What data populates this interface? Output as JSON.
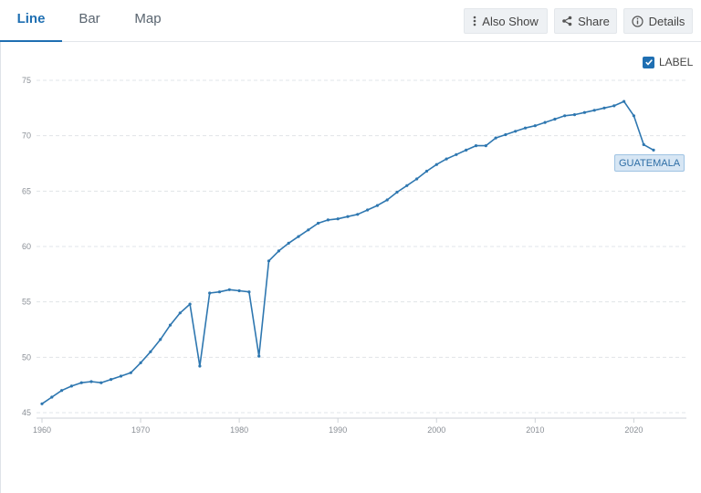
{
  "tabs": [
    {
      "label": "Line",
      "active": true
    },
    {
      "label": "Bar",
      "active": false
    },
    {
      "label": "Map",
      "active": false
    }
  ],
  "toolbar": {
    "also_show_label": "Also Show",
    "share_label": "Share",
    "details_label": "Details"
  },
  "label_toggle": {
    "text": "LABEL",
    "checked": true
  },
  "colors": {
    "accent": "#1f6fb2",
    "line": "#2e77b0",
    "grid": "#e1e4e8"
  },
  "icons": {
    "also_show": "vertical-dots-icon",
    "share": "share-icon",
    "details": "info-icon",
    "label_checkbox": "checkbox-checked-icon"
  },
  "chart_data": {
    "type": "line",
    "title": "",
    "xlabel": "",
    "ylabel": "",
    "xlim": [
      1960,
      2022
    ],
    "ylim": [
      45,
      75
    ],
    "x_ticks": [
      1960,
      1970,
      1980,
      1990,
      2000,
      2010,
      2020
    ],
    "y_ticks": [
      45,
      50,
      55,
      60,
      65,
      70,
      75
    ],
    "grid": "horizontal-dashed",
    "series": [
      {
        "name": "GUATEMALA",
        "color": "#2e77b0",
        "x": [
          1960,
          1961,
          1962,
          1963,
          1964,
          1965,
          1966,
          1967,
          1968,
          1969,
          1970,
          1971,
          1972,
          1973,
          1974,
          1975,
          1976,
          1977,
          1978,
          1979,
          1980,
          1981,
          1982,
          1983,
          1984,
          1985,
          1986,
          1987,
          1988,
          1989,
          1990,
          1991,
          1992,
          1993,
          1994,
          1995,
          1996,
          1997,
          1998,
          1999,
          2000,
          2001,
          2002,
          2003,
          2004,
          2005,
          2006,
          2007,
          2008,
          2009,
          2010,
          2011,
          2012,
          2013,
          2014,
          2015,
          2016,
          2017,
          2018,
          2019,
          2020,
          2021,
          2022
        ],
        "y": [
          45.8,
          46.4,
          47.0,
          47.4,
          47.7,
          47.8,
          47.7,
          48.0,
          48.3,
          48.6,
          49.5,
          50.5,
          51.6,
          52.9,
          54.0,
          54.8,
          49.2,
          55.8,
          55.9,
          56.1,
          56.0,
          55.9,
          50.1,
          58.7,
          59.6,
          60.3,
          60.9,
          61.5,
          62.1,
          62.4,
          62.5,
          62.7,
          62.9,
          63.3,
          63.7,
          64.2,
          64.9,
          65.5,
          66.1,
          66.8,
          67.4,
          67.9,
          68.3,
          68.7,
          69.1,
          69.1,
          69.8,
          70.1,
          70.4,
          70.7,
          70.9,
          71.2,
          71.5,
          71.8,
          71.9,
          72.1,
          72.3,
          72.5,
          72.7,
          73.1,
          71.8,
          69.2,
          68.7
        ]
      }
    ],
    "series_label": "GUATEMALA"
  }
}
